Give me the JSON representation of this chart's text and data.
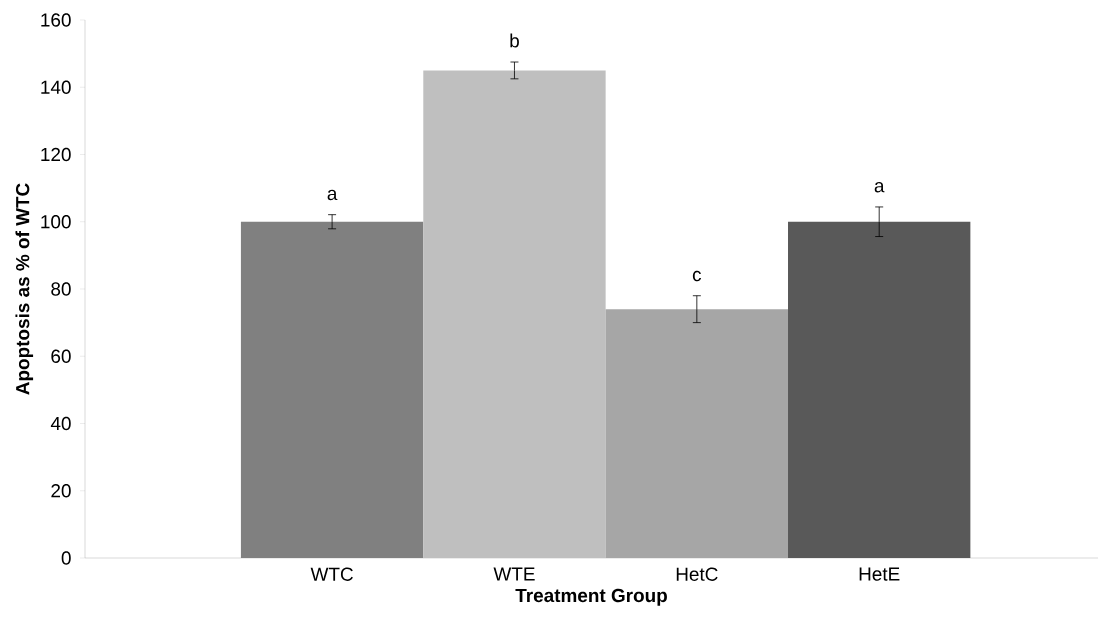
{
  "chart_data": {
    "type": "bar",
    "xlabel": "Treatment Group",
    "ylabel": "Apoptosis as % of WTC",
    "categories": [
      "WTC",
      "WTE",
      "HetC",
      "HetE"
    ],
    "values": [
      100,
      145,
      74,
      100
    ],
    "colors": [
      "#808080",
      "#bfbfbf",
      "#a6a6a6",
      "#595959"
    ],
    "errors": [
      2.1,
      2.5,
      4,
      4.4
    ],
    "ylim": [
      0,
      160
    ],
    "yticks": [
      0,
      20,
      40,
      60,
      80,
      100,
      120,
      140,
      160
    ],
    "grid": false,
    "annotations": [
      "a",
      "b",
      "c",
      "a"
    ]
  }
}
